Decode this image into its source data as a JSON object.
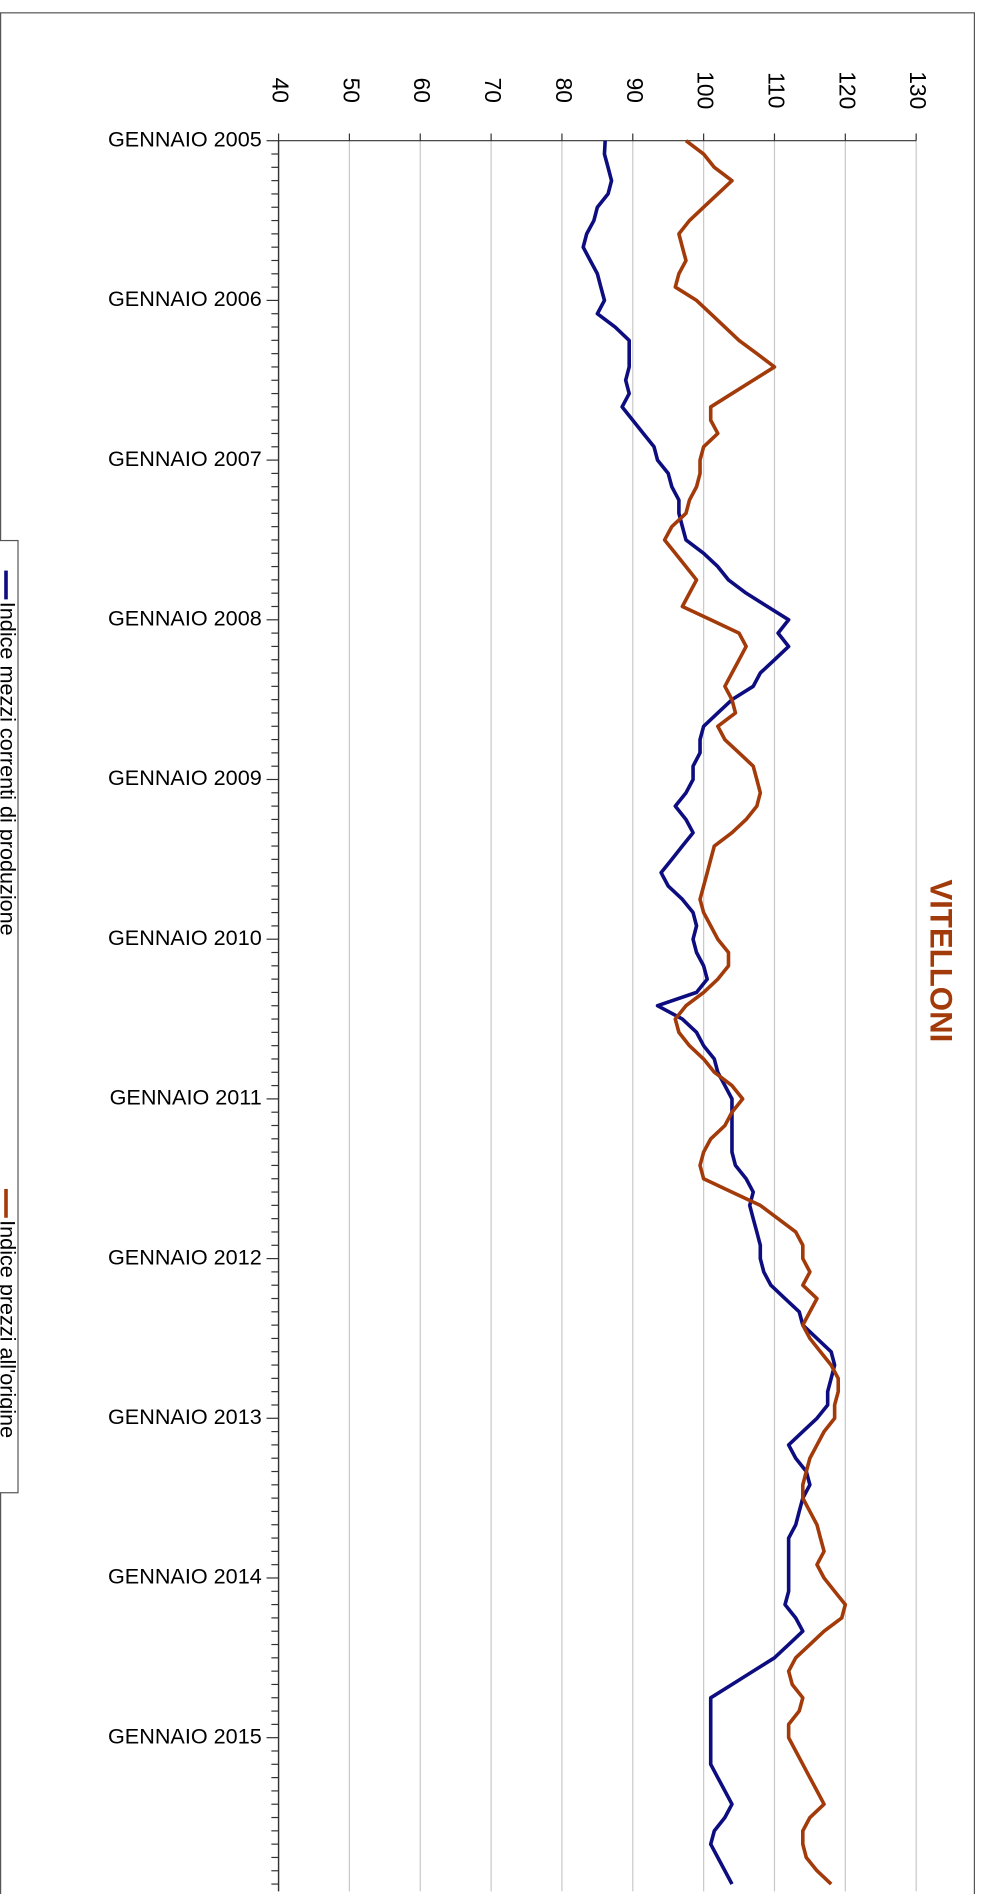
{
  "chart_data": {
    "type": "line",
    "title": "VITELLONI",
    "categories": [
      "GENNAIO 2005",
      null,
      null,
      null,
      null,
      null,
      null,
      null,
      null,
      null,
      null,
      null,
      "GENNAIO 2006",
      null,
      null,
      null,
      null,
      null,
      null,
      null,
      null,
      null,
      null,
      null,
      "GENNAIO 2007",
      null,
      null,
      null,
      null,
      null,
      null,
      null,
      null,
      null,
      null,
      null,
      "GENNAIO 2008",
      null,
      null,
      null,
      null,
      null,
      null,
      null,
      null,
      null,
      null,
      null,
      "GENNAIO 2009",
      null,
      null,
      null,
      null,
      null,
      null,
      null,
      null,
      null,
      null,
      null,
      "GENNAIO 2010",
      null,
      null,
      null,
      null,
      null,
      null,
      null,
      null,
      null,
      null,
      null,
      "GENNAIO 2011",
      null,
      null,
      null,
      null,
      null,
      null,
      null,
      null,
      null,
      null,
      null,
      "GENNAIO 2012",
      null,
      null,
      null,
      null,
      null,
      null,
      null,
      null,
      null,
      null,
      null,
      "GENNAIO 2013",
      null,
      null,
      null,
      null,
      null,
      null,
      null,
      null,
      null,
      null,
      null,
      "GENNAIO 2014",
      null,
      null,
      null,
      null,
      null,
      null,
      null,
      null,
      null,
      null,
      null,
      "GENNAIO 2015",
      null,
      null,
      null,
      null,
      null,
      null,
      null,
      null,
      null,
      null,
      null
    ],
    "series": [
      {
        "name": "Indice mezzi correnti di produzione",
        "color": "#0d0d80",
        "values": [
          86.1,
          86,
          86.5,
          87,
          86.5,
          85,
          84.5,
          83.5,
          83,
          84,
          85,
          85.5,
          86,
          85,
          87.5,
          89.5,
          89.5,
          89.5,
          89,
          89.5,
          88.5,
          90,
          91.5,
          93,
          93.5,
          95,
          95.5,
          96.5,
          96.5,
          97,
          97.5,
          100,
          102,
          103.5,
          106,
          109,
          112,
          110.5,
          112,
          110,
          108,
          107,
          104,
          102,
          100,
          99.5,
          99.5,
          98.5,
          98.5,
          97.5,
          96,
          97.5,
          98.5,
          97,
          95.5,
          94,
          95,
          97,
          98.5,
          99,
          98.5,
          99,
          100,
          100.5,
          99,
          93.5,
          97,
          99,
          100,
          101.5,
          102,
          103,
          104,
          104,
          104,
          104,
          104,
          104.5,
          106,
          107,
          106.5,
          107,
          107.5,
          108,
          108,
          108.5,
          109.5,
          111.5,
          113.5,
          114,
          116,
          118,
          118.5,
          118,
          117.5,
          117.5,
          116,
          114,
          112,
          113,
          114.5,
          115,
          114,
          113.5,
          113,
          112,
          112,
          112,
          112,
          112,
          111.5,
          113,
          114,
          112,
          110,
          107,
          104,
          101,
          101,
          101,
          101,
          101,
          101,
          102,
          103,
          104,
          103,
          101.5,
          101,
          102,
          103,
          104
        ]
      },
      {
        "name": "Indice prezzi all'origine",
        "color": "#a33a0a",
        "values": [
          97.5,
          100,
          101.5,
          104,
          102,
          100,
          98,
          96.5,
          97,
          97.5,
          96.5,
          96,
          99,
          101,
          103,
          105,
          107.5,
          110,
          107,
          104,
          101,
          101,
          102,
          100,
          99.5,
          99.5,
          99,
          98,
          97.5,
          95.5,
          94.5,
          96,
          97.5,
          99,
          98,
          97,
          101,
          105,
          106,
          105,
          104,
          103,
          104,
          104.5,
          102,
          103,
          105,
          107,
          107.5,
          108,
          107.5,
          106,
          104,
          101.5,
          101,
          100.5,
          100,
          99.5,
          100,
          101,
          102,
          103.5,
          103.5,
          102,
          100,
          97.5,
          96,
          96.5,
          98,
          100,
          101.5,
          104,
          105.5,
          104,
          103,
          101,
          100,
          99.5,
          100,
          104,
          108,
          110.5,
          113,
          114,
          114,
          115,
          114,
          116,
          115,
          114,
          115,
          116.5,
          118,
          119,
          119,
          118.5,
          118.5,
          117,
          116,
          115,
          114.5,
          114,
          114,
          115,
          116,
          116.5,
          117,
          116,
          117,
          118.5,
          120,
          119.5,
          117,
          115,
          113,
          112,
          112.5,
          114,
          113.5,
          112,
          112,
          113,
          114,
          115,
          116,
          117,
          115,
          114,
          114,
          114.5,
          116,
          118
        ]
      }
    ],
    "ylim": [
      40,
      130
    ],
    "yticks": [
      40,
      50,
      60,
      70,
      80,
      90,
      100,
      110,
      120,
      130
    ],
    "grid": true
  }
}
